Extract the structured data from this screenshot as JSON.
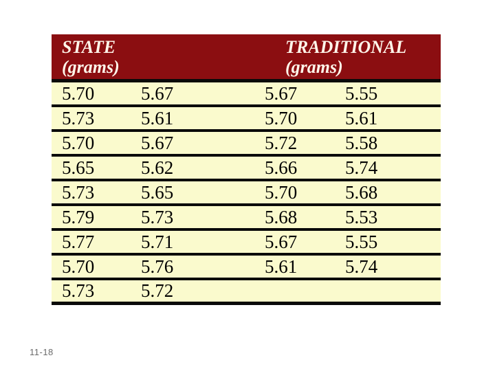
{
  "table": {
    "header": {
      "state": {
        "title": "STATE",
        "unit": "(grams)"
      },
      "traditional": {
        "title": "TRADITIONAL",
        "unit": "(grams)"
      }
    },
    "rows": [
      [
        "5.70",
        "5.67",
        "5.67",
        "5.55"
      ],
      [
        "5.73",
        "5.61",
        "5.70",
        "5.61"
      ],
      [
        "5.70",
        "5.67",
        "5.72",
        "5.58"
      ],
      [
        "5.65",
        "5.62",
        "5.66",
        "5.74"
      ],
      [
        "5.73",
        "5.65",
        "5.70",
        "5.68"
      ],
      [
        "5.79",
        "5.73",
        "5.68",
        "5.53"
      ],
      [
        "5.77",
        "5.71",
        "5.67",
        "5.55"
      ],
      [
        "5.70",
        "5.76",
        "5.61",
        "5.74"
      ],
      [
        "5.73",
        "5.72",
        "",
        ""
      ]
    ]
  },
  "footer": {
    "page_label": "11-18"
  },
  "colors": {
    "header_bg": "#8B0E11",
    "header_text": "#FFF5EA",
    "table_bg": "#FAFACD",
    "grid_line": "#0A0A0A",
    "cell_text": "#000000",
    "footer_text": "#6B6B6B",
    "page_bg": "#FFFFFF"
  },
  "chart_data": {
    "type": "table",
    "column_groups": [
      "STATE (grams)",
      "TRADITIONAL (grams)"
    ],
    "state_grams": [
      5.7,
      5.67,
      5.73,
      5.61,
      5.7,
      5.67,
      5.65,
      5.62,
      5.73,
      5.65,
      5.79,
      5.73,
      5.77,
      5.71,
      5.7,
      5.76,
      5.73,
      5.72
    ],
    "traditional_grams": [
      5.67,
      5.55,
      5.7,
      5.61,
      5.72,
      5.58,
      5.66,
      5.74,
      5.7,
      5.68,
      5.68,
      5.53,
      5.67,
      5.55,
      5.61,
      5.74
    ]
  }
}
